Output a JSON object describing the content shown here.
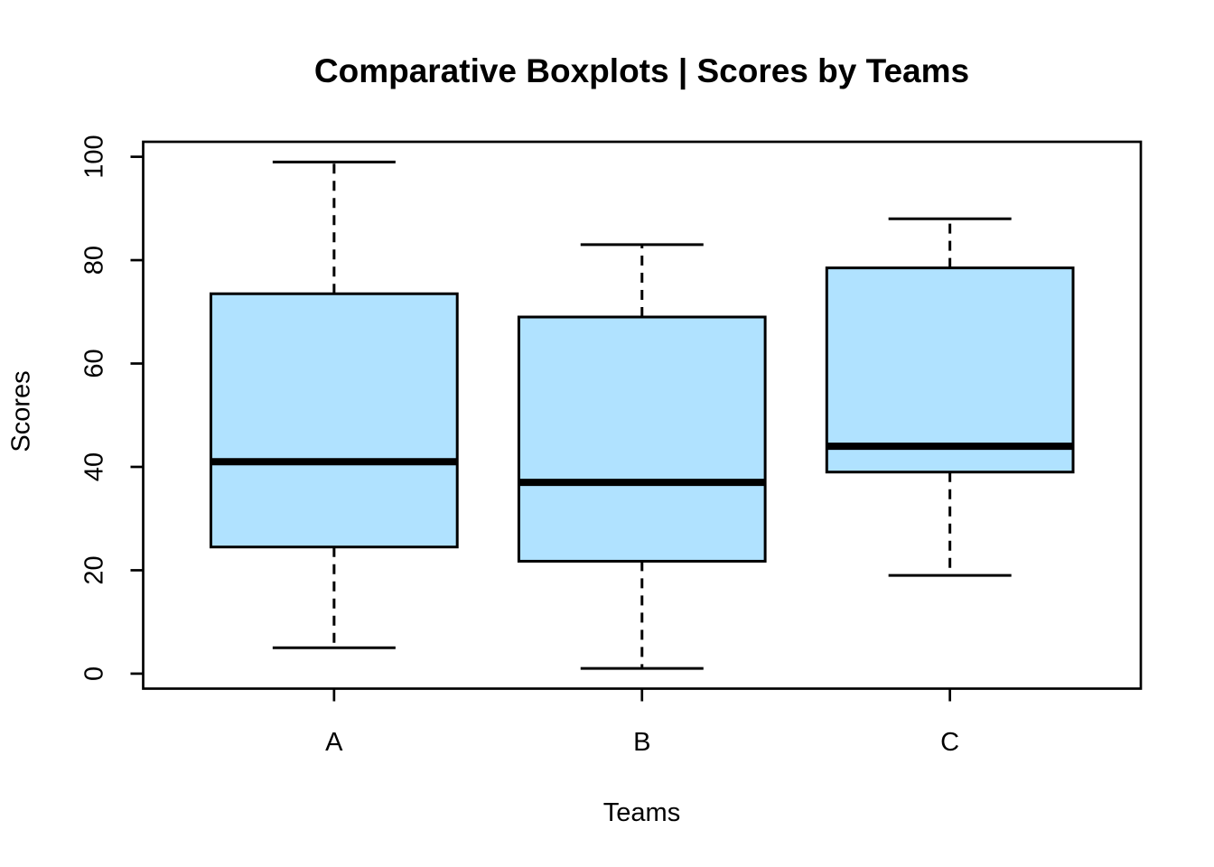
{
  "figure": {
    "background": "#ffffff"
  },
  "chart_data": {
    "type": "boxplot",
    "title": "Comparative Boxplots | Scores by Teams",
    "xlabel": "Teams",
    "ylabel": "Scores",
    "categories": [
      "A",
      "B",
      "C"
    ],
    "y_ticks": [
      0,
      20,
      40,
      60,
      80,
      100
    ],
    "ylim": [
      -2.9,
      102.9
    ],
    "grid": false,
    "box_fill": "#B0E2FF",
    "line_color": "#000000",
    "series": [
      {
        "name": "A",
        "whisker_low": 5,
        "q1": 24.5,
        "median": 41,
        "q3": 73.5,
        "whisker_high": 99,
        "outliers": []
      },
      {
        "name": "B",
        "whisker_low": 1,
        "q1": 21.75,
        "median": 37,
        "q3": 69,
        "whisker_high": 83,
        "outliers": []
      },
      {
        "name": "C",
        "whisker_low": 19,
        "q1": 39,
        "median": 44,
        "q3": 78.5,
        "whisker_high": 88,
        "outliers": []
      }
    ]
  }
}
